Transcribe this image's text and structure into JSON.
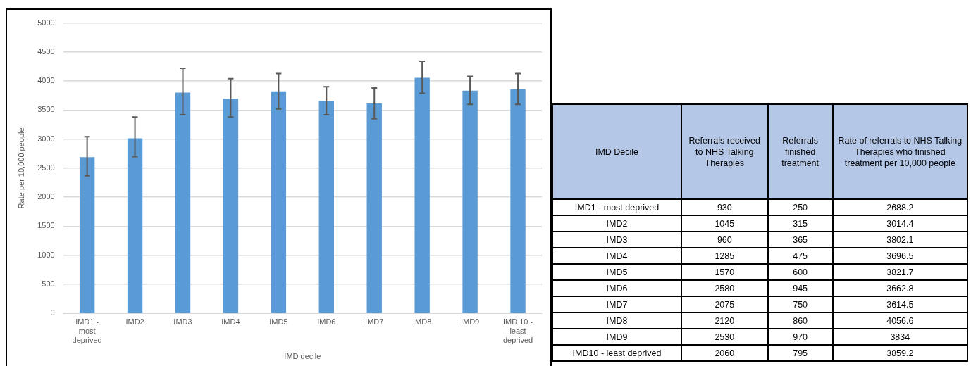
{
  "chart_data": [
    {
      "type": "bar",
      "xlabel": "IMD decile",
      "ylabel": "Rate per 10,000 people",
      "categories": [
        "IMD1 - most deprived",
        "IMD2",
        "IMD3",
        "IMD4",
        "IMD5",
        "IMD6",
        "IMD7",
        "IMD8",
        "IMD9",
        "IMD 10 - least deprived"
      ],
      "values": [
        2688.2,
        3014.4,
        3802.1,
        3696.5,
        3821.7,
        3662.8,
        3614.5,
        4056.6,
        3834,
        3859.2
      ],
      "errors": [
        [
          2370,
          3040
        ],
        [
          2700,
          3380
        ],
        [
          3420,
          4220
        ],
        [
          3380,
          4040
        ],
        [
          3520,
          4130
        ],
        [
          3420,
          3900
        ],
        [
          3350,
          3880
        ],
        [
          3790,
          4340
        ],
        [
          3600,
          4080
        ],
        [
          3600,
          4130
        ]
      ],
      "color": "#5b9bd5",
      "ylim": [
        0,
        5000
      ],
      "yticks": [
        0,
        500,
        1000,
        1500,
        2000,
        2500,
        3000,
        3500,
        4000,
        4500,
        5000
      ],
      "grid": "y",
      "legend": false
    },
    {
      "type": "other",
      "xlabel": "IMD Decile",
      "categories": [
        "IMD1 - most deprived",
        "IMD2",
        "IMD3",
        "IMD4",
        "IMD5",
        "IMD6",
        "IMD7",
        "IMD8",
        "IMD9",
        "IMD10 - least deprived"
      ],
      "series": [
        {
          "name": "Referrals received to NHS Talking Therapies",
          "values": [
            930,
            1045,
            960,
            1285,
            1570,
            2580,
            2075,
            2120,
            2530,
            2060
          ]
        },
        {
          "name": "Referrals finished treatment",
          "values": [
            250,
            315,
            365,
            475,
            600,
            945,
            750,
            860,
            970,
            795
          ]
        },
        {
          "name": "Rate of referrals to NHS Talking Therapies who finished treatment per 10,000 people",
          "values": [
            2688.2,
            3014.4,
            3802.1,
            3696.5,
            3821.7,
            3662.8,
            3614.5,
            4056.6,
            3834,
            3859.2
          ]
        }
      ],
      "data_labels": true
    }
  ]
}
